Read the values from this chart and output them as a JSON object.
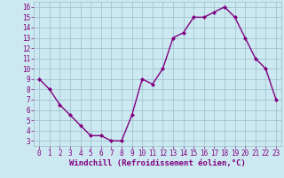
{
  "x": [
    0,
    1,
    2,
    3,
    4,
    5,
    6,
    7,
    8,
    9,
    10,
    11,
    12,
    13,
    14,
    15,
    16,
    17,
    18,
    19,
    20,
    21,
    22,
    23
  ],
  "y": [
    9,
    8,
    6.5,
    5.5,
    4.5,
    3.5,
    3.5,
    3,
    3,
    5.5,
    9,
    8.5,
    10,
    13,
    13.5,
    15,
    15,
    15.5,
    16,
    15,
    13,
    11,
    10,
    7
  ],
  "line_color": "#800080",
  "marker": "D",
  "marker_size": 2,
  "bg_color": "#cce8f0",
  "grid_color": "#9bbfcc",
  "xlabel": "Windchill (Refroidissement éolien,°C)",
  "xlabel_color": "#800080",
  "xlabel_fontsize": 6.5,
  "tick_color": "#800080",
  "tick_fontsize": 5.5,
  "ylim": [
    2.5,
    16.5
  ],
  "xlim": [
    -0.5,
    23.5
  ],
  "yticks": [
    3,
    4,
    5,
    6,
    7,
    8,
    9,
    10,
    11,
    12,
    13,
    14,
    15,
    16
  ],
  "xticks": [
    0,
    1,
    2,
    3,
    4,
    5,
    6,
    7,
    8,
    9,
    10,
    11,
    12,
    13,
    14,
    15,
    16,
    17,
    18,
    19,
    20,
    21,
    22,
    23
  ]
}
